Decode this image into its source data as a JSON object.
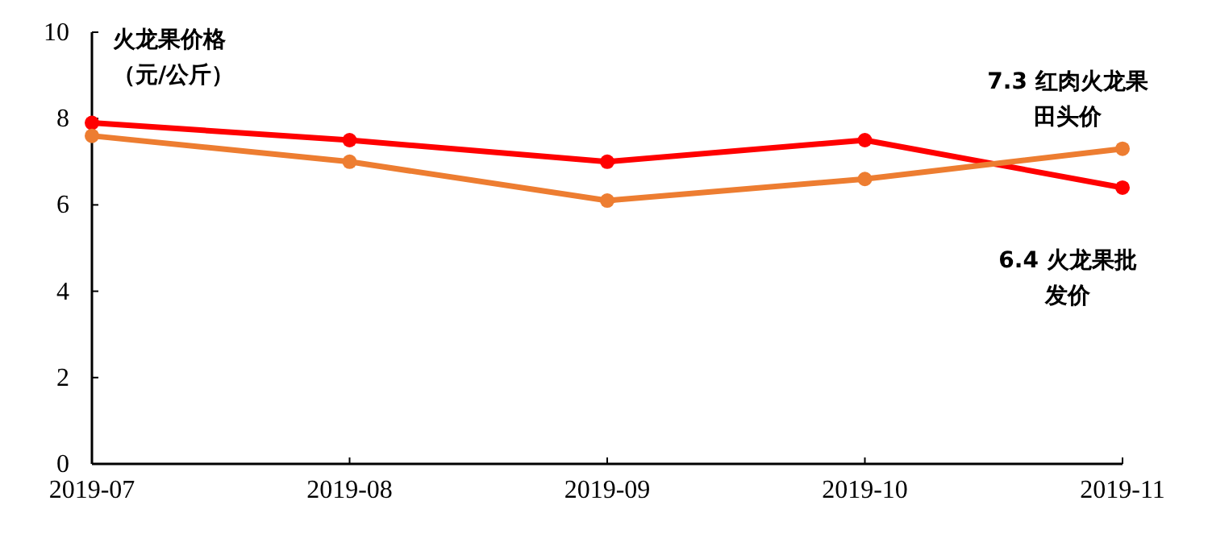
{
  "chart_data": {
    "type": "line",
    "ylabel": "火龙果价格（元/公斤）",
    "categories": [
      "2019-07",
      "2019-08",
      "2019-09",
      "2019-10",
      "2019-11"
    ],
    "ylim": [
      0,
      10
    ],
    "yticks": [
      0,
      2,
      4,
      6,
      8,
      10
    ],
    "marker": "circle",
    "grid": false,
    "series": [
      {
        "name": "火龙果批发价",
        "color": "#ff0000",
        "values": [
          7.9,
          7.5,
          7.0,
          7.5,
          6.4
        ],
        "value_labels": [
          null,
          null,
          null,
          null,
          "6.4"
        ]
      },
      {
        "name": "红肉火龙果田头价",
        "color": "#ed7d31",
        "values": [
          7.6,
          7.0,
          6.1,
          6.6,
          7.3
        ],
        "value_labels": [
          null,
          null,
          null,
          null,
          "7.3"
        ]
      }
    ]
  }
}
